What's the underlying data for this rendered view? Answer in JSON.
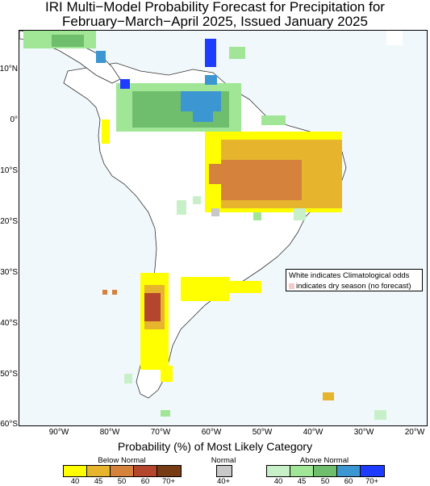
{
  "title": {
    "line1": "IRI Multi−Model Probability Forecast for Precipitation for",
    "line2": "February−March−April 2025, Issued January 2025"
  },
  "axes": {
    "lat_labels": [
      "10°N",
      "0°",
      "10°S",
      "20°S",
      "30°S",
      "40°S",
      "50°S",
      "60°S"
    ],
    "lon_labels": [
      "90°W",
      "80°W",
      "70°W",
      "60°W",
      "50°W",
      "40°W",
      "30°W",
      "20°W"
    ]
  },
  "note": {
    "line1": "White indicates Climatological odds",
    "line2": "indicates dry season (no forecast)"
  },
  "legend": {
    "title": "Probability (%) of Most Likely Category",
    "below": {
      "label": "Below Normal",
      "ticks": [
        "40",
        "45",
        "50",
        "60",
        "70+"
      ],
      "colors": [
        "#ffff00",
        "#e6b42d",
        "#d4823c",
        "#b4462d",
        "#783c14"
      ]
    },
    "normal": {
      "label": "Normal",
      "ticks": [
        "40+"
      ],
      "colors": [
        "#c8c8c8"
      ]
    },
    "above": {
      "label": "Above Normal",
      "ticks": [
        "40",
        "45",
        "50",
        "60",
        "70+"
      ],
      "colors": [
        "#c8f0c8",
        "#a0e696",
        "#6ebe6e",
        "#3c96d2",
        "#1e3cff"
      ]
    }
  },
  "map_colors": {
    "ocean": "#f0f8fc",
    "land": "#ffffff",
    "dry_season": "#f6c8c8"
  }
}
